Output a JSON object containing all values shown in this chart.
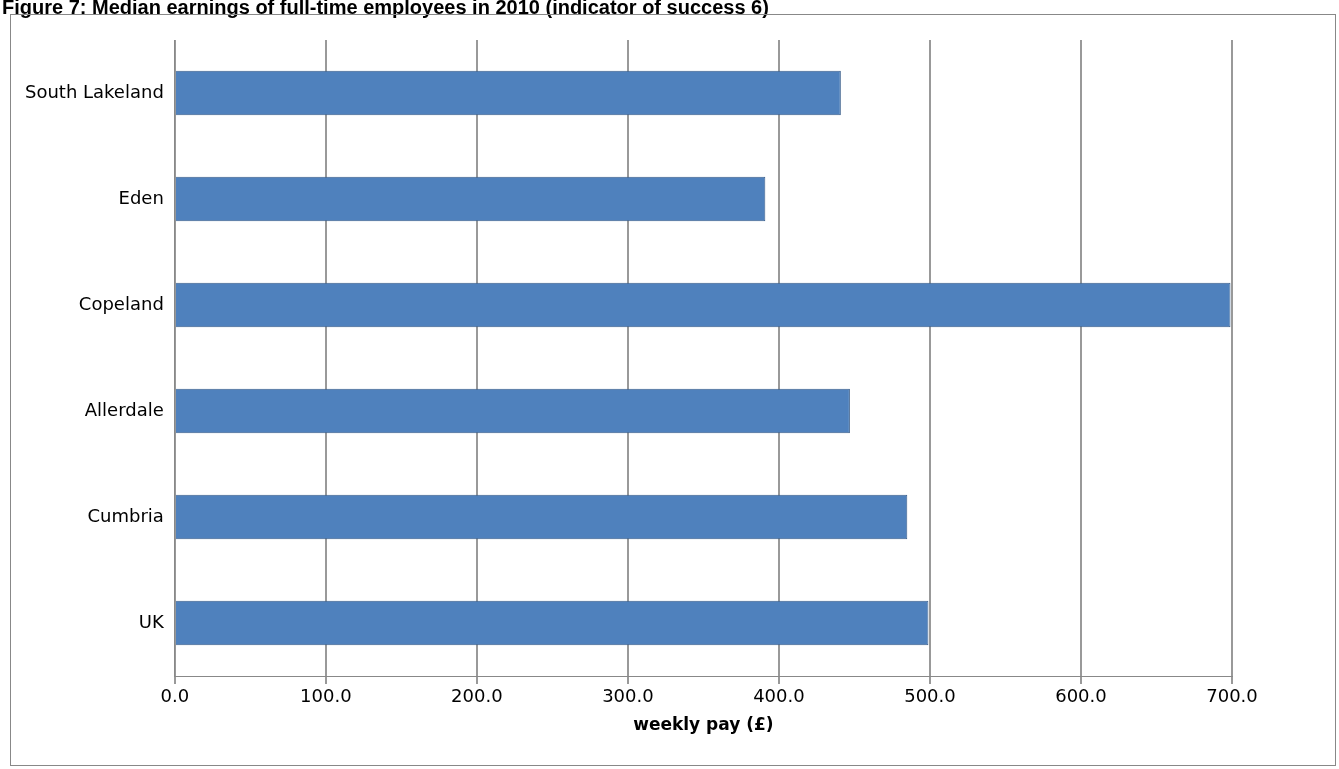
{
  "chart_data": {
    "type": "bar",
    "orientation": "horizontal",
    "title": "Figure 7: Median earnings of full-time employees in 2010 (indicator of success 6)",
    "xlabel": "weekly pay (£)",
    "categories": [
      "South Lakeland",
      "Eden",
      "Copeland",
      "Allerdale",
      "Cumbria",
      "UK"
    ],
    "values": [
      441,
      391,
      699,
      447,
      485,
      499
    ],
    "color": "#4f81bd",
    "xlim": [
      0,
      700
    ],
    "xticks": [
      {
        "value": 0,
        "label": "0.0"
      },
      {
        "value": 100,
        "label": "100.0"
      },
      {
        "value": 200,
        "label": "200.0"
      },
      {
        "value": 300,
        "label": "300.0"
      },
      {
        "value": 400,
        "label": "400.0"
      },
      {
        "value": 500,
        "label": "500.0"
      },
      {
        "value": 600,
        "label": "600.0"
      },
      {
        "value": 700,
        "label": "700.0"
      }
    ],
    "grid": "x"
  }
}
